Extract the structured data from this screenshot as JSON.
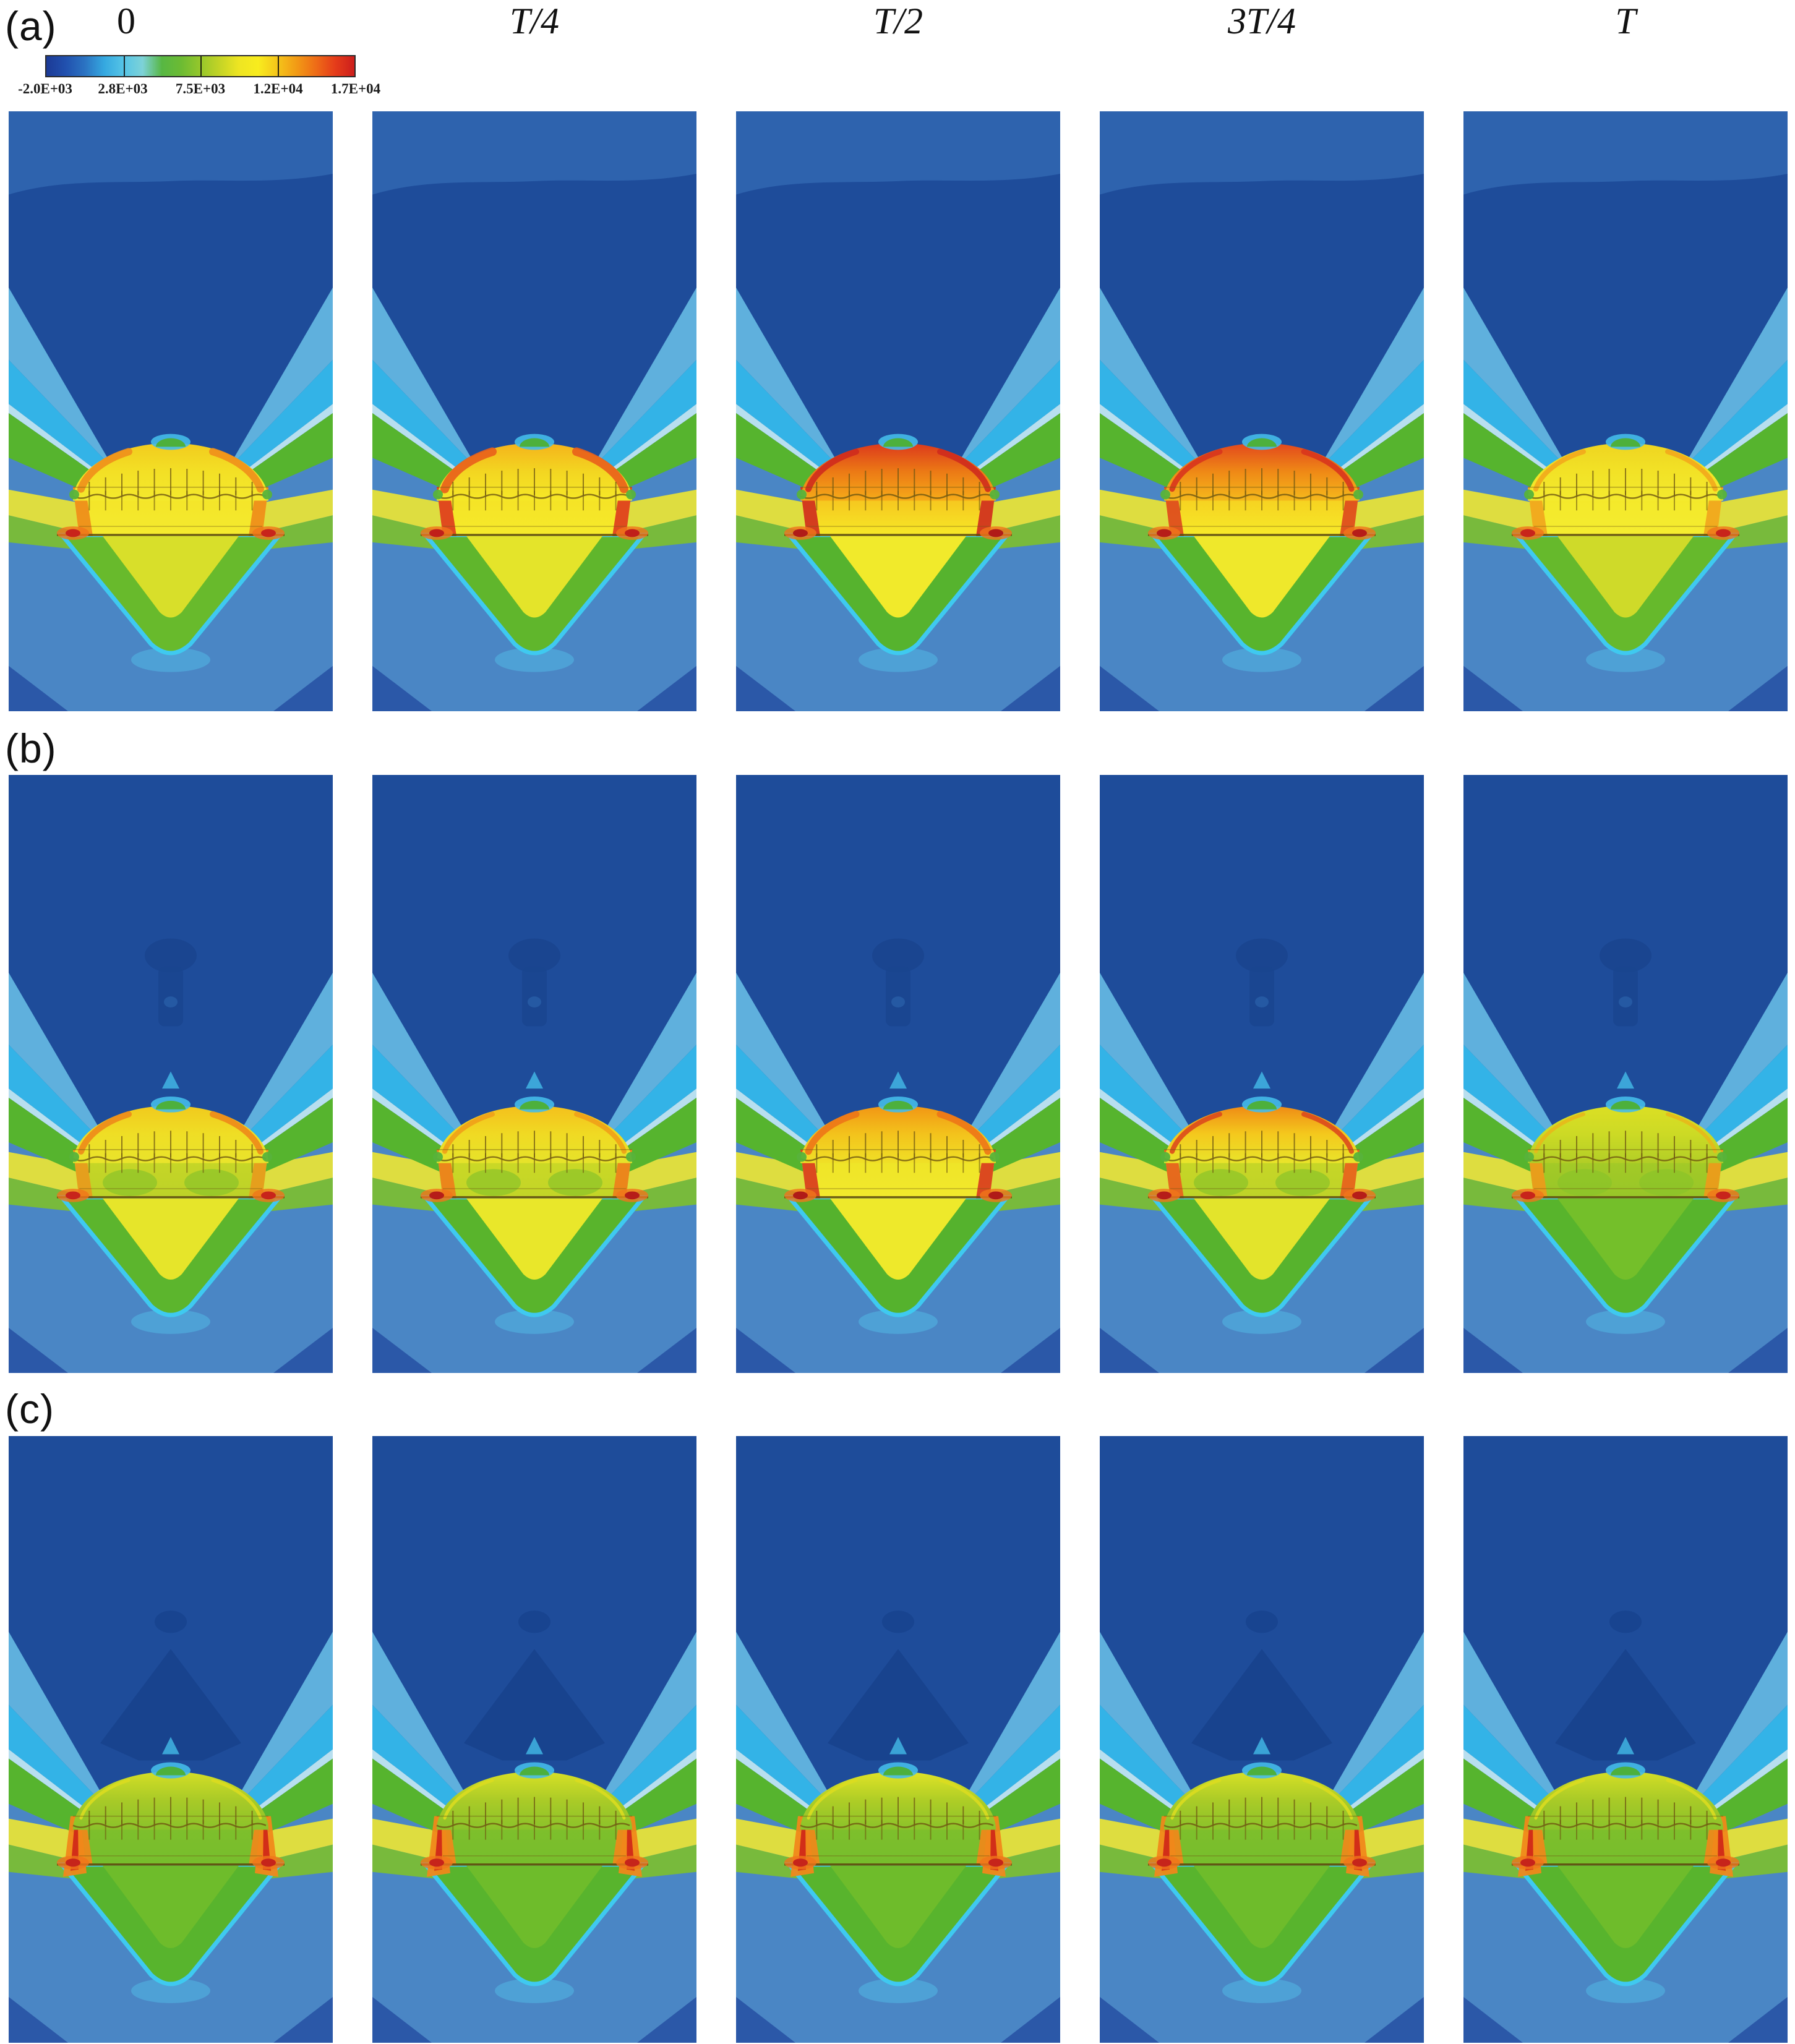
{
  "figure": {
    "kind": "multi-panel contour figure",
    "row_labels": [
      "(a)",
      "(b)",
      "(c)"
    ],
    "column_labels": [
      "0",
      "T/4",
      "T/2",
      "3T/4",
      "T"
    ]
  },
  "chart_data": {
    "type": "heatmap",
    "title": "",
    "subtitle": "",
    "rows": 3,
    "cols": 5,
    "row_labels": [
      "(a)",
      "(b)",
      "(c)"
    ],
    "column_labels": [
      "0",
      "T/4",
      "T/2",
      "3T/4",
      "T"
    ],
    "legend_position": "top-left",
    "colorbar": {
      "orientation": "horizontal",
      "min": -2000,
      "max": 17000,
      "tick_labels": [
        "-2.0E+03",
        "2.8E+03",
        "7.5E+03",
        "1.2E+04",
        "1.7E+04"
      ],
      "tick_values": [
        -2000,
        2800,
        7500,
        12000,
        17000
      ],
      "gradient_stops": [
        "#1c3a96",
        "#2150ae",
        "#2b73c2",
        "#35a8e0",
        "#55c4e6",
        "#7dd2d8",
        "#57b743",
        "#6cbb33",
        "#96c72b",
        "#c4d426",
        "#eee522",
        "#f8ec1e",
        "#f5c51a",
        "#f29a15",
        "#ee6c17",
        "#e53c1a",
        "#cc1e1c"
      ]
    },
    "scene": {
      "navy": "#1e4c9a",
      "navy_band": "#2e63ae",
      "medium_blue": "#4a86c5",
      "dark_corner": "#2b58a8",
      "light_blue_band": "#5fb0dd",
      "cyan_band": "#33b3e7",
      "pale_edge": "#c9eff8",
      "green_band": "#56b42e",
      "yellow_strip": "#e6e139",
      "green_strip": "#7dc02c",
      "basin_rim": "#3fc9f0",
      "tip_glow": "#55c3ec",
      "shadow_blob": "#1a458f",
      "shadow_wedge": "#17428d",
      "mesh_line": "#6f5712"
    },
    "panels": [
      {
        "id": "a-0",
        "row": "(a)",
        "time": "0",
        "palette": {
          "dome": [
            "#f2cb1e",
            "#f3e025",
            "#f4e92d"
          ],
          "shoulder": "#ef8f1b",
          "shoulder_w": 12,
          "wall": [
            "#f3e427",
            "#f5ea2e"
          ],
          "wall_side": "#ee8c1a",
          "basin_inner": "#d8df2a",
          "basin_outer": "#68ba2c",
          "hotspot": "#c8241b",
          "cap": "#4db03c",
          "halo": "#44bbe9"
        },
        "features": {
          "top_band": true,
          "shadow": "none",
          "wall_blobs": false,
          "side_flames": false,
          "side_notches": true
        }
      },
      {
        "id": "a-T4",
        "row": "(a)",
        "time": "T/4",
        "palette": {
          "dome": [
            "#f4b31b",
            "#f3d621",
            "#f6e827"
          ],
          "shoulder": "#e95f1b",
          "shoulder_w": 14,
          "wall": [
            "#f4e124",
            "#f6ea2b"
          ],
          "wall_side": "#dd3d1d",
          "basin_inner": "#e4e42a",
          "basin_outer": "#60b62c",
          "hotspot": "#c01f1a",
          "cap": "#4db03c",
          "halo": "#44bbe9"
        },
        "features": {
          "top_band": true,
          "shadow": "none",
          "wall_blobs": false,
          "side_flames": false,
          "side_notches": true
        }
      },
      {
        "id": "a-T2",
        "row": "(a)",
        "time": "T/2",
        "palette": {
          "dome": [
            "#dc381c",
            "#ec7a15",
            "#f6ab19"
          ],
          "shoulder": "#cf2b1d",
          "shoulder_w": 10,
          "wall": [
            "#f5bb1c",
            "#f7e927"
          ],
          "wall_side": "#cf2f1e",
          "basin_inner": "#f1ea2b",
          "basin_outer": "#56b32e",
          "hotspot": "#b01b18",
          "cap": "#4db03c",
          "halo": "#44bbe9"
        },
        "features": {
          "top_band": true,
          "shadow": "none",
          "wall_blobs": false,
          "side_flames": false,
          "side_notches": true
        }
      },
      {
        "id": "a-3T4",
        "row": "(a)",
        "time": "3T/4",
        "palette": {
          "dome": [
            "#e2471d",
            "#ef8916",
            "#f5b91c"
          ],
          "shoulder": "#d8351d",
          "shoulder_w": 9,
          "wall": [
            "#f5ca1e",
            "#f7ea29"
          ],
          "wall_side": "#dd4a1d",
          "basin_inner": "#efe82b",
          "basin_outer": "#58b42d",
          "hotspot": "#b61d19",
          "cap": "#4db03c",
          "halo": "#44bbe9"
        },
        "features": {
          "top_band": true,
          "shadow": "none",
          "wall_blobs": false,
          "side_flames": false,
          "side_notches": true
        }
      },
      {
        "id": "a-T",
        "row": "(a)",
        "time": "T",
        "palette": {
          "dome": [
            "#eed421",
            "#f2e226",
            "#f4ea2e"
          ],
          "shoulder": "#f2a81c",
          "shoulder_w": 8,
          "wall": [
            "#f3e828",
            "#f5ec30"
          ],
          "wall_side": "#f0a51d",
          "basin_inner": "#cfda29",
          "basin_outer": "#66b92c",
          "hotspot": "#c8241b",
          "cap": "#4db03c",
          "halo": "#44bbe9"
        },
        "features": {
          "top_band": true,
          "shadow": "none",
          "wall_blobs": false,
          "side_flames": false,
          "side_notches": true
        }
      },
      {
        "id": "b-0",
        "row": "(b)",
        "time": "0",
        "palette": {
          "dome": [
            "#f1c91d",
            "#efde25",
            "#e9e42b"
          ],
          "shoulder": "#ed8a1a",
          "shoulder_w": 10,
          "wall": [
            "#c9d726",
            "#bcd228"
          ],
          "wall_side": "#e89a1c",
          "basin_inner": "#e6e52a",
          "basin_outer": "#5cb52d",
          "hotspot": "#c8241b",
          "cap": "#4db03c",
          "halo": "#44bbe9"
        },
        "features": {
          "top_band": false,
          "shadow": "blob",
          "wall_blobs": true,
          "side_flames": false,
          "side_notches": true
        }
      },
      {
        "id": "b-T4",
        "row": "(b)",
        "time": "T/4",
        "palette": {
          "dome": [
            "#f4bf1c",
            "#f0da23",
            "#e6e32a"
          ],
          "shoulder": "#f0a018",
          "shoulder_w": 8,
          "wall": [
            "#cdd926",
            "#c2d527"
          ],
          "wall_side": "#ee7f1a",
          "basin_inner": "#e9e72a",
          "basin_outer": "#59b42c",
          "hotspot": "#b61d19",
          "cap": "#4db03c",
          "halo": "#44bbe9"
        },
        "features": {
          "top_band": false,
          "shadow": "blob",
          "wall_blobs": true,
          "side_flames": false,
          "side_notches": true
        }
      },
      {
        "id": "b-T2",
        "row": "(b)",
        "time": "T/2",
        "palette": {
          "dome": [
            "#f19514",
            "#f3c31c",
            "#f0e026"
          ],
          "shoulder": "#ed7517",
          "shoulder_w": 11,
          "wall": [
            "#eee326",
            "#f2e92c"
          ],
          "wall_side": "#d93c1e",
          "basin_inner": "#eee92b",
          "basin_outer": "#55b22d",
          "hotspot": "#b01b18",
          "cap": "#4db03c",
          "halo": "#44bbe9"
        },
        "features": {
          "top_band": false,
          "shadow": "blob",
          "wall_blobs": false,
          "side_flames": false,
          "side_notches": true
        }
      },
      {
        "id": "b-3T4",
        "row": "(b)",
        "time": "3T/4",
        "palette": {
          "dome": [
            "#ef8a15",
            "#f4c91d",
            "#e9e42a"
          ],
          "shoulder": "#db4a1c",
          "shoulder_w": 8,
          "wall": [
            "#cad726",
            "#bed328"
          ],
          "wall_side": "#e8611c",
          "basin_inner": "#e3e42b",
          "basin_outer": "#57b32d",
          "hotspot": "#b61d19",
          "cap": "#4db03c",
          "halo": "#44bbe9"
        },
        "features": {
          "top_band": false,
          "shadow": "blob",
          "wall_blobs": true,
          "side_flames": false,
          "side_notches": true
        }
      },
      {
        "id": "b-T",
        "row": "(b)",
        "time": "T",
        "palette": {
          "dome": [
            "#dcdf24",
            "#ccda25",
            "#b2ce26"
          ],
          "shoulder": "#e7b81b",
          "shoulder_w": 6,
          "wall": [
            "#a8cb26",
            "#97c628"
          ],
          "wall_side": "#ee9a1a",
          "basin_inner": "#74bf2a",
          "basin_outer": "#58b42c",
          "hotspot": "#c8241b",
          "cap": "#4db03c",
          "halo": "#44bbe9"
        },
        "features": {
          "top_band": false,
          "shadow": "blob",
          "wall_blobs": true,
          "side_flames": false,
          "side_notches": true
        }
      },
      {
        "id": "c-0",
        "row": "(c)",
        "time": "0",
        "palette": {
          "dome": [
            "#d4de26",
            "#a8ca27",
            "#8ac22a"
          ],
          "shoulder": "#dadc20",
          "shoulder_w": 5,
          "wall": [
            "#80c02b",
            "#76bd2c"
          ],
          "wall_side": "#f0881a",
          "basin_inner": "#6ebc2b",
          "basin_outer": "#58b42d",
          "hotspot": "#c6241b",
          "cap": "#4db03c",
          "halo": "#44bbe9"
        },
        "features": {
          "top_band": false,
          "shadow": "wedge",
          "wall_blobs": false,
          "side_flames": true,
          "side_notches": false
        }
      },
      {
        "id": "c-T4",
        "row": "(c)",
        "time": "T/4",
        "palette": {
          "dome": [
            "#d8e026",
            "#aacb27",
            "#8ac22a"
          ],
          "shoulder": "#dadc20",
          "shoulder_w": 5,
          "wall": [
            "#80c02b",
            "#76bd2c"
          ],
          "wall_side": "#f0881a",
          "basin_inner": "#6ebc2b",
          "basin_outer": "#58b42d",
          "hotspot": "#c6241b",
          "cap": "#4db03c",
          "halo": "#44bbe9"
        },
        "features": {
          "top_band": false,
          "shadow": "wedge",
          "wall_blobs": false,
          "side_flames": true,
          "side_notches": false
        }
      },
      {
        "id": "c-T2",
        "row": "(c)",
        "time": "T/2",
        "palette": {
          "dome": [
            "#e0e327",
            "#aecd26",
            "#8ac22a"
          ],
          "shoulder": "#dadc20",
          "shoulder_w": 5,
          "wall": [
            "#80c02b",
            "#76bd2c"
          ],
          "wall_side": "#f0881a",
          "basin_inner": "#6ebc2b",
          "basin_outer": "#58b42d",
          "hotspot": "#c6241b",
          "cap": "#4db03c",
          "halo": "#44bbe9"
        },
        "features": {
          "top_band": false,
          "shadow": "wedge",
          "wall_blobs": false,
          "side_flames": true,
          "side_notches": false
        }
      },
      {
        "id": "c-3T4",
        "row": "(c)",
        "time": "3T/4",
        "palette": {
          "dome": [
            "#d8e026",
            "#aacb27",
            "#8ac22a"
          ],
          "shoulder": "#dadc20",
          "shoulder_w": 5,
          "wall": [
            "#80c02b",
            "#76bd2c"
          ],
          "wall_side": "#f0881a",
          "basin_inner": "#6ebc2b",
          "basin_outer": "#58b42d",
          "hotspot": "#c6241b",
          "cap": "#4db03c",
          "halo": "#44bbe9"
        },
        "features": {
          "top_band": false,
          "shadow": "wedge",
          "wall_blobs": false,
          "side_flames": true,
          "side_notches": false
        }
      },
      {
        "id": "c-T",
        "row": "(c)",
        "time": "T",
        "palette": {
          "dome": [
            "#d4de26",
            "#a8ca27",
            "#8ac22a"
          ],
          "shoulder": "#dadc20",
          "shoulder_w": 5,
          "wall": [
            "#80c02b",
            "#76bd2c"
          ],
          "wall_side": "#f0881a",
          "basin_inner": "#6ebc2b",
          "basin_outer": "#58b42d",
          "hotspot": "#c6241b",
          "cap": "#4db03c",
          "halo": "#44bbe9"
        },
        "features": {
          "top_band": false,
          "shadow": "wedge",
          "wall_blobs": false,
          "side_flames": true,
          "side_notches": false
        }
      }
    ]
  }
}
